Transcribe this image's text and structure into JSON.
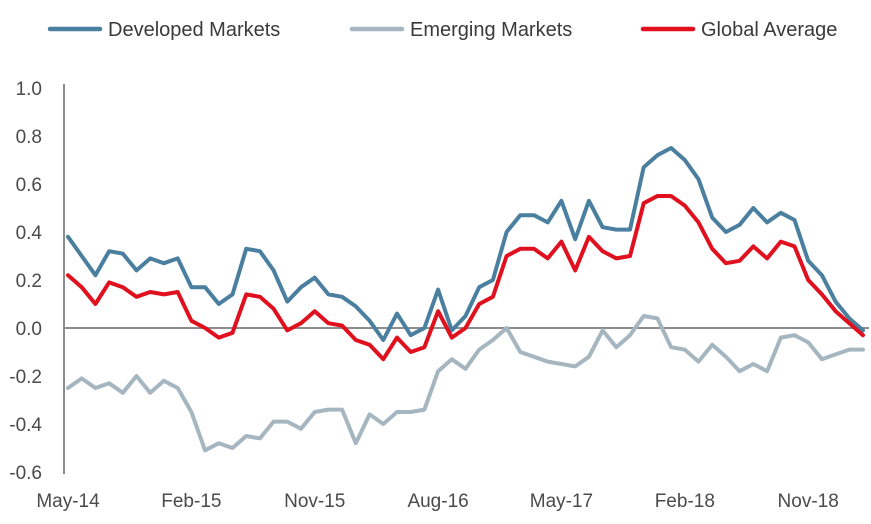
{
  "chart_data": {
    "type": "line",
    "title": "",
    "xlabel": "",
    "ylabel": "",
    "ylim": [
      -0.6,
      1.0
    ],
    "y_ticks": [
      "1.0",
      "0.8",
      "0.6",
      "0.4",
      "0.2",
      "0.0",
      "-0.2",
      "-0.4",
      "-0.6"
    ],
    "x_tick_labels": [
      "May-14",
      "Feb-15",
      "Nov-15",
      "Aug-16",
      "May-17",
      "Feb-18",
      "Nov-18"
    ],
    "x_tick_months": [
      "2014-05",
      "2015-02",
      "2015-11",
      "2016-08",
      "2017-05",
      "2018-02",
      "2018-11"
    ],
    "grid": false,
    "legend_position": "top",
    "x": [
      "2014-05",
      "2014-06",
      "2014-07",
      "2014-08",
      "2014-09",
      "2014-10",
      "2014-11",
      "2014-12",
      "2015-01",
      "2015-02",
      "2015-03",
      "2015-04",
      "2015-05",
      "2015-06",
      "2015-07",
      "2015-08",
      "2015-09",
      "2015-10",
      "2015-11",
      "2015-12",
      "2016-01",
      "2016-02",
      "2016-03",
      "2016-04",
      "2016-05",
      "2016-06",
      "2016-07",
      "2016-08",
      "2016-09",
      "2016-10",
      "2016-11",
      "2016-12",
      "2017-01",
      "2017-02",
      "2017-03",
      "2017-04",
      "2017-05",
      "2017-06",
      "2017-07",
      "2017-08",
      "2017-09",
      "2017-10",
      "2017-11",
      "2017-12",
      "2018-01",
      "2018-02",
      "2018-03",
      "2018-04",
      "2018-05",
      "2018-06",
      "2018-07",
      "2018-08",
      "2018-09",
      "2018-10",
      "2018-11",
      "2018-12",
      "2019-01",
      "2019-02",
      "2019-03"
    ],
    "series": [
      {
        "name": "Developed Markets",
        "color": "#4a7f9f",
        "values": [
          0.38,
          0.3,
          0.22,
          0.32,
          0.31,
          0.24,
          0.29,
          0.27,
          0.29,
          0.17,
          0.17,
          0.1,
          0.14,
          0.33,
          0.32,
          0.24,
          0.11,
          0.17,
          0.21,
          0.14,
          0.13,
          0.09,
          0.03,
          -0.05,
          0.06,
          -0.03,
          0.0,
          0.16,
          -0.01,
          0.05,
          0.17,
          0.2,
          0.4,
          0.47,
          0.47,
          0.44,
          0.53,
          0.37,
          0.53,
          0.42,
          0.41,
          0.41,
          0.67,
          0.72,
          0.75,
          0.7,
          0.62,
          0.46,
          0.4,
          0.43,
          0.5,
          0.44,
          0.48,
          0.45,
          0.28,
          0.22,
          0.11,
          0.04,
          -0.01
        ]
      },
      {
        "name": "Emerging Markets",
        "color": "#a6b6c0",
        "values": [
          -0.25,
          -0.21,
          -0.25,
          -0.23,
          -0.27,
          -0.2,
          -0.27,
          -0.22,
          -0.25,
          -0.35,
          -0.51,
          -0.48,
          -0.5,
          -0.45,
          -0.46,
          -0.39,
          -0.39,
          -0.42,
          -0.35,
          -0.34,
          -0.34,
          -0.48,
          -0.36,
          -0.4,
          -0.35,
          -0.35,
          -0.34,
          -0.18,
          -0.13,
          -0.17,
          -0.09,
          -0.05,
          0.0,
          -0.1,
          -0.12,
          -0.14,
          -0.15,
          -0.16,
          -0.12,
          -0.01,
          -0.08,
          -0.03,
          0.05,
          0.04,
          -0.08,
          -0.09,
          -0.14,
          -0.07,
          -0.12,
          -0.18,
          -0.15,
          -0.18,
          -0.04,
          -0.03,
          -0.06,
          -0.13,
          -0.11,
          -0.09,
          -0.09
        ]
      },
      {
        "name": "Global Average",
        "color": "#e0101e",
        "values": [
          0.22,
          0.17,
          0.1,
          0.19,
          0.17,
          0.13,
          0.15,
          0.14,
          0.15,
          0.03,
          0.0,
          -0.04,
          -0.02,
          0.14,
          0.13,
          0.08,
          -0.01,
          0.02,
          0.07,
          0.02,
          0.01,
          -0.05,
          -0.07,
          -0.13,
          -0.04,
          -0.1,
          -0.08,
          0.07,
          -0.04,
          0.0,
          0.1,
          0.13,
          0.3,
          0.33,
          0.33,
          0.29,
          0.36,
          0.24,
          0.38,
          0.32,
          0.29,
          0.3,
          0.52,
          0.55,
          0.55,
          0.51,
          0.44,
          0.33,
          0.27,
          0.28,
          0.34,
          0.29,
          0.36,
          0.34,
          0.2,
          0.14,
          0.07,
          0.02,
          -0.03
        ]
      }
    ]
  }
}
